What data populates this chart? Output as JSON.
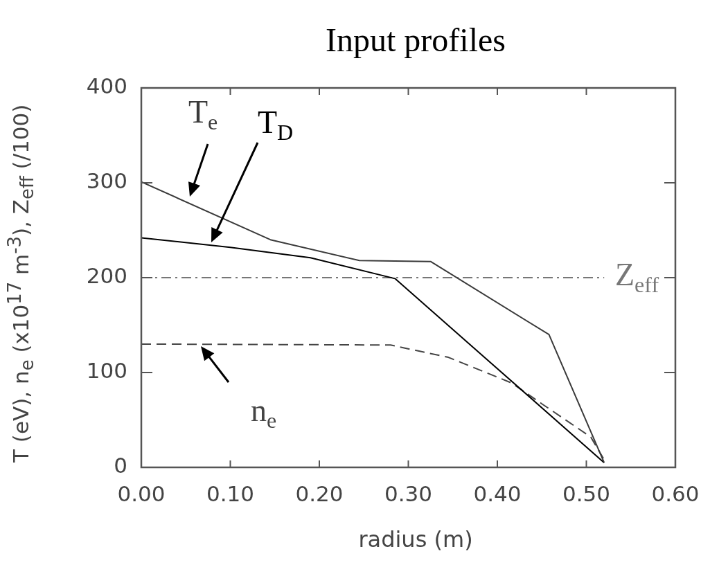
{
  "chart_data": {
    "type": "line",
    "title": "Input profiles",
    "xlabel": "radius (m)",
    "ylabel": "T (eV), n$_{e}$ (x10$^{17}$ m$^{-3}$), Z$_{eff}$ (/100)",
    "xlim": [
      0,
      0.6
    ],
    "xticks": [
      {
        "value": 0,
        "label": "0.00"
      },
      {
        "value": 0.1,
        "label": "0.10"
      },
      {
        "value": 0.2,
        "label": "0.20"
      },
      {
        "value": 0.3,
        "label": "0.30"
      },
      {
        "value": 0.4,
        "label": "0.40"
      },
      {
        "value": 0.5,
        "label": "0.50"
      },
      {
        "value": 0.6,
        "label": "0.60"
      }
    ],
    "ylim": [
      0,
      400
    ],
    "yticks": [
      0,
      100,
      200,
      300,
      400
    ],
    "grid": false,
    "legend": false,
    "marker": "none",
    "series": [
      {
        "name": "T$_{e}$",
        "color": "#3a3a3a",
        "line_style": "solid",
        "x": [
          0,
          0.145,
          0.245,
          0.325,
          0.458,
          0.52
        ],
        "values": [
          301,
          240,
          218,
          217,
          140,
          5
        ]
      },
      {
        "name": "T$_{D}$",
        "color": "#000000",
        "line_style": "solid",
        "x": [
          0,
          0.1,
          0.19,
          0.285,
          0.52
        ],
        "values": [
          242,
          232,
          221,
          199,
          5
        ]
      },
      {
        "name": "n$_{e}$",
        "color": "#444444",
        "line_style": "dashed",
        "x": [
          0,
          0.28,
          0.345,
          0.416,
          0.45,
          0.505,
          0.52
        ],
        "values": [
          130,
          129,
          116,
          89,
          67,
          32,
          8
        ]
      },
      {
        "name": "Z$_{eff}$",
        "color": "#777777",
        "line_style": "dashdot",
        "x": [
          0,
          0.52
        ],
        "values": [
          200,
          200
        ]
      }
    ]
  }
}
